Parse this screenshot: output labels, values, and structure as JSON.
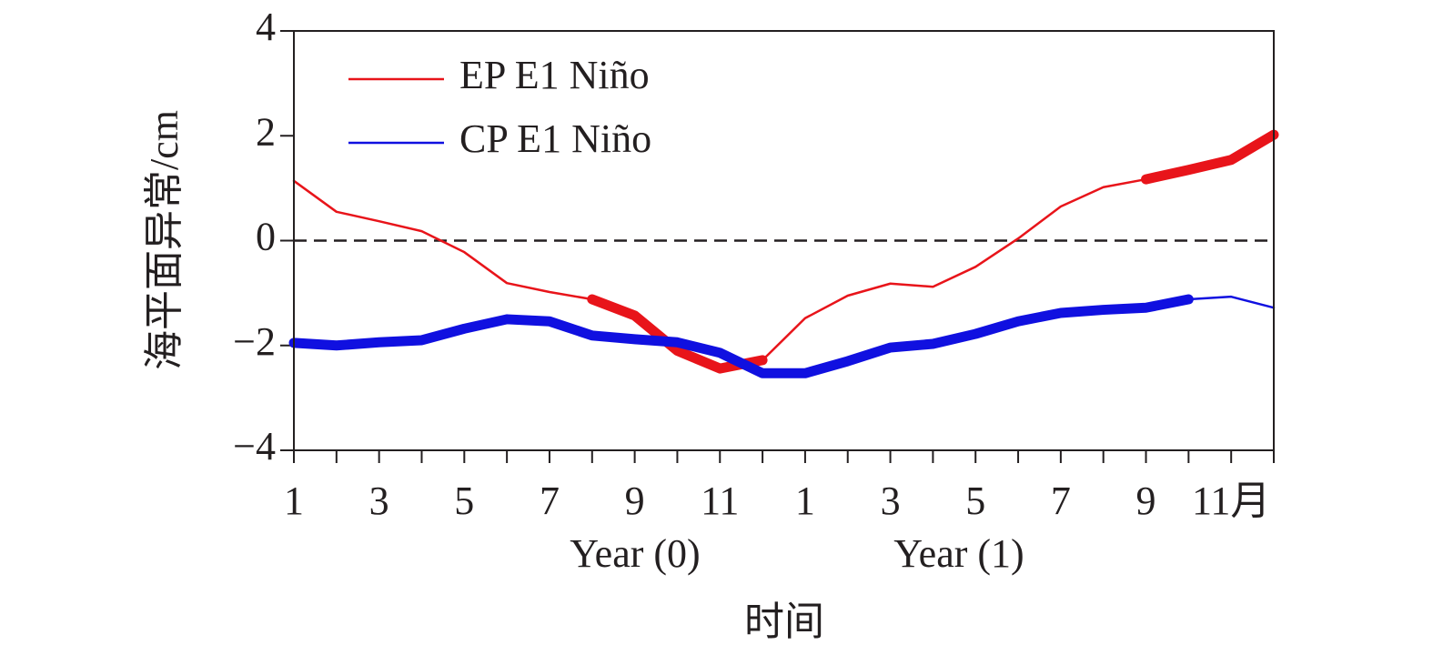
{
  "chart_data": {
    "type": "line",
    "ylabel": "海平面异常/cm",
    "xlabel": "时间",
    "categories": [
      "1",
      null,
      "3",
      null,
      "5",
      null,
      "7",
      null,
      "9",
      null,
      "11",
      null,
      "1",
      null,
      "3",
      null,
      "5",
      null,
      "7",
      null,
      "9",
      null,
      "11月",
      null
    ],
    "x_groups": [
      "Year (0)",
      "Year (1)"
    ],
    "series": [
      {
        "name": "EP E1 Niño",
        "color": "#e8141a",
        "values": [
          1.14,
          0.55,
          0.37,
          0.18,
          -0.22,
          -0.81,
          -0.98,
          -1.12,
          -1.43,
          -2.1,
          -2.44,
          -2.28,
          -1.48,
          -1.05,
          -0.82,
          -0.88,
          -0.5,
          0.04,
          0.65,
          1.02,
          1.17,
          1.35,
          1.54,
          2.02
        ],
        "bold_segments": [
          [
            7,
            11
          ],
          [
            20,
            23
          ]
        ]
      },
      {
        "name": "CP E1 Niño",
        "color": "#1010e0",
        "values": [
          -1.95,
          -2.0,
          -1.94,
          -1.9,
          -1.68,
          -1.5,
          -1.54,
          -1.81,
          -1.88,
          -1.94,
          -2.14,
          -2.53,
          -2.53,
          -2.3,
          -2.04,
          -1.97,
          -1.78,
          -1.54,
          -1.38,
          -1.32,
          -1.28,
          -1.12,
          -1.07,
          -1.28
        ],
        "bold_segments": [
          [
            0,
            21
          ]
        ]
      }
    ],
    "ylim": [
      -4,
      4
    ],
    "yticks": [
      {
        "value": -4,
        "label": "−4"
      },
      {
        "value": -2,
        "label": "−2"
      },
      0,
      2,
      4
    ],
    "reference_line": 0,
    "legend": "upper left"
  }
}
